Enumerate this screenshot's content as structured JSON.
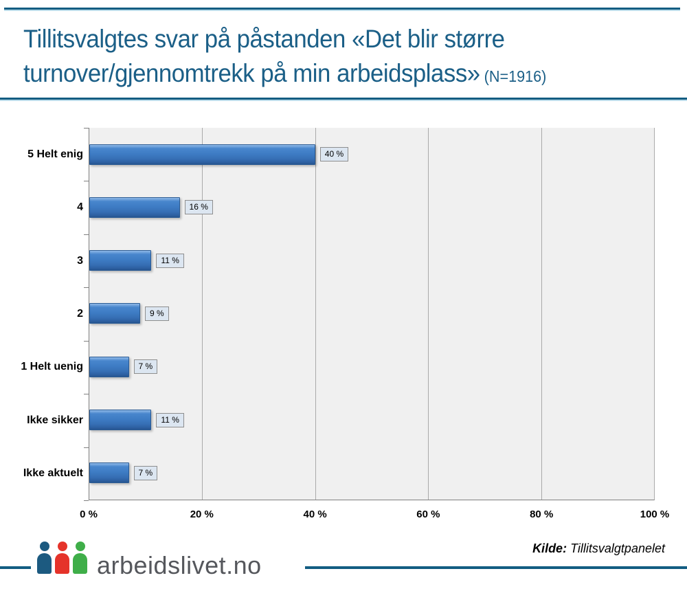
{
  "header": {
    "title_line1": "Tillitsvalgtes svar på påstanden «Det blir større",
    "title_line2": "turnover/gjennomtrekk på min arbeidsplass»",
    "title_suffix": " (N=1916)"
  },
  "chart_data": {
    "type": "bar",
    "orientation": "horizontal",
    "title": "Tillitsvalgtes svar på påstanden «Det blir større turnover/gjennomtrekk på min arbeidsplass» (N=1916)",
    "sample_size": "N=1916",
    "categories": [
      "5 Helt enig",
      "4",
      "3",
      "2",
      "1 Helt uenig",
      "Ikke sikker",
      "Ikke aktuelt"
    ],
    "values": [
      40,
      16,
      11,
      9,
      7,
      11,
      7
    ],
    "value_labels": [
      "40 %",
      "16 %",
      "11 %",
      "9 %",
      "7 %",
      "11 %",
      "7 %"
    ],
    "xlim": [
      0,
      100
    ],
    "x_ticks": [
      0,
      20,
      40,
      60,
      80,
      100
    ],
    "x_tick_labels": [
      "0 %",
      "20 %",
      "40 %",
      "60 %",
      "80 %",
      "100 %"
    ],
    "grid": "vertical",
    "legend": "none",
    "bar_color": "#3c7ac3",
    "plot_background": "#f0f0f0",
    "gridline_color": "#a9a9a9",
    "value_box_background": "#dce6f1"
  },
  "footer": {
    "kilde_label": "Kilde:",
    "kilde_value": " Tillitsvalgtpanelet",
    "logo_text": "arbeidslivet.no",
    "logo_person_colors": [
      "#1c5a80",
      "#e5332a",
      "#3fae49"
    ]
  },
  "colors": {
    "accent_rule": "#135d82",
    "title_text": "#1b5f87"
  }
}
